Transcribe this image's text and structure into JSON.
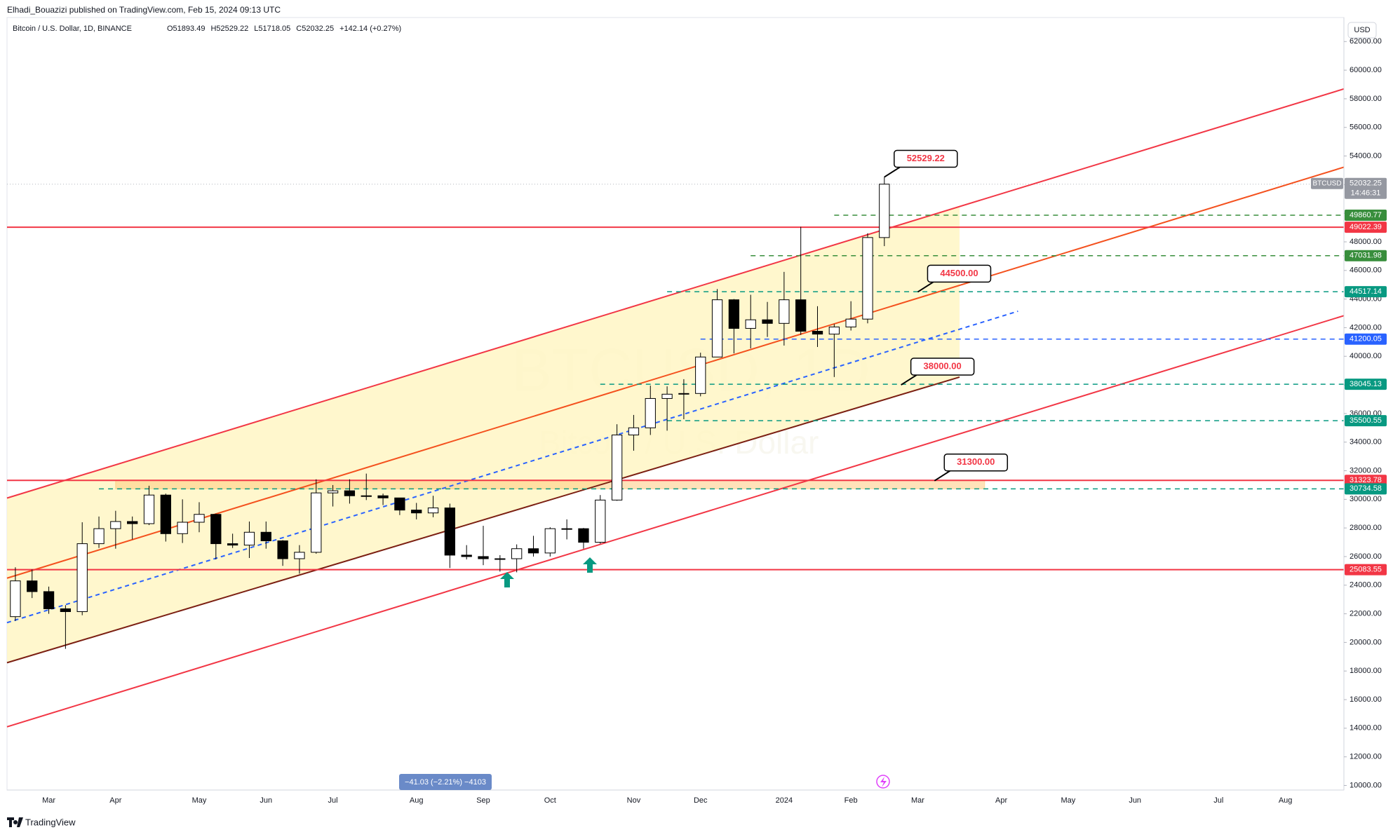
{
  "header": {
    "published": "Elhadi_Bouazizi published on TradingView.com, Feb 15, 2024 09:13 UTC",
    "brand": "TradingView"
  },
  "chart_data": {
    "type": "candlestick",
    "title": "Bitcoin / U.S. Dollar, 1D, BINANCE",
    "ohlc_text": [
      "O51893.49",
      "H52529.22",
      "L51718.05",
      "C52032.25",
      "+142.14 (+0.27%)"
    ],
    "watermark": [
      "BTCUSD, 1D",
      "Bitcoin / U.S. Dollar"
    ],
    "currency": "USD",
    "measure": "−41.03 (−2.21%) −4103",
    "categories": [
      null,
      null,
      "Mar",
      null,
      null,
      null,
      "Apr",
      null,
      null,
      null,
      null,
      "May",
      null,
      null,
      null,
      "Jun",
      null,
      null,
      null,
      "Jul",
      null,
      null,
      null,
      null,
      "Aug",
      null,
      null,
      null,
      "Sep",
      null,
      null,
      null,
      "Oct",
      null,
      null,
      null,
      null,
      "Nov",
      null,
      null,
      null,
      "Dec",
      null,
      null,
      null,
      null,
      "2024",
      null,
      null,
      null,
      "Feb",
      null,
      null,
      null,
      "Mar",
      null,
      null,
      null,
      null,
      "Apr",
      null,
      null,
      null,
      "May",
      null,
      null,
      null,
      "Jun",
      null,
      null,
      null,
      null,
      "Jul",
      null,
      null,
      null,
      "Aug",
      null,
      null,
      null
    ],
    "series": [
      {
        "name": "BTCUSD",
        "up_color": "#ffffff",
        "down_color": "#000000",
        "wick_color": "#000000",
        "open": [
          21800,
          24300,
          23550,
          22350,
          22150,
          26900,
          27950,
          28450,
          28300,
          30300,
          27600,
          28400,
          28950,
          26900,
          26800,
          27700,
          27100,
          25850,
          26300,
          30450,
          30600,
          30250,
          30250,
          30100,
          29250,
          29050,
          29400,
          26100,
          26000,
          25850,
          25850,
          26550,
          26250,
          27950,
          27950,
          27000,
          29950,
          34500,
          35000,
          37050,
          37350,
          37400,
          39950,
          43950,
          41950,
          42550,
          42300,
          43950,
          41750,
          41550,
          42050,
          42600,
          48300,
          null,
          null,
          null,
          null,
          null,
          null,
          null,
          null,
          null,
          null,
          null,
          null,
          null,
          null,
          null,
          null,
          null,
          null,
          null,
          null,
          null,
          null,
          null,
          null,
          null,
          null,
          null
        ],
        "high": [
          25250,
          25100,
          23900,
          22600,
          28400,
          28800,
          29200,
          28800,
          30950,
          30400,
          30000,
          29800,
          29000,
          27600,
          28450,
          28450,
          27150,
          26800,
          31400,
          31000,
          31400,
          31800,
          30400,
          30100,
          29750,
          30250,
          29700,
          26800,
          28150,
          26100,
          26850,
          27450,
          28050,
          28600,
          28000,
          30300,
          35250,
          35900,
          37950,
          37900,
          38400,
          40250,
          44700,
          44000,
          44300,
          43800,
          45900,
          49050,
          43500,
          42250,
          43850,
          48600,
          52529.22,
          null,
          null,
          null,
          null,
          null,
          null,
          null,
          null,
          null,
          null,
          null,
          null,
          null,
          null,
          null,
          null,
          null,
          null,
          null,
          null,
          null,
          null,
          null,
          null,
          null,
          null,
          null
        ],
        "low": [
          21500,
          23100,
          22000,
          19550,
          21900,
          26600,
          26550,
          27200,
          28200,
          27050,
          26950,
          27700,
          25800,
          26600,
          25900,
          26550,
          25350,
          24800,
          26200,
          29500,
          29700,
          29950,
          29600,
          28900,
          28600,
          28750,
          25200,
          25800,
          25400,
          24950,
          24900,
          26000,
          26000,
          27200,
          26550,
          26900,
          29900,
          33400,
          34500,
          34800,
          35600,
          37200,
          39950,
          40200,
          40550,
          41350,
          40750,
          41500,
          40650,
          38550,
          41800,
          42300,
          47700,
          null,
          null,
          null,
          null,
          null,
          null,
          null,
          null,
          null,
          null,
          null,
          null,
          null,
          null,
          null,
          null,
          null,
          null,
          null,
          null,
          null,
          null,
          null,
          null,
          null,
          null,
          null
        ],
        "close": [
          24300,
          23550,
          22350,
          22150,
          26900,
          27950,
          28450,
          28300,
          30300,
          27600,
          28400,
          28950,
          26900,
          26800,
          27700,
          27100,
          25850,
          26300,
          30450,
          30600,
          30250,
          30250,
          30100,
          29250,
          29050,
          29400,
          26100,
          26000,
          25850,
          25850,
          26550,
          26250,
          27950,
          27950,
          27000,
          29950,
          34500,
          35000,
          37050,
          37350,
          37400,
          39950,
          43950,
          41950,
          42550,
          42300,
          43950,
          41750,
          41550,
          42050,
          42600,
          48300,
          52032.25,
          null,
          null,
          null,
          null,
          null,
          null,
          null,
          null,
          null,
          null,
          null,
          null,
          null,
          null,
          null,
          null,
          null,
          null,
          null,
          null,
          null,
          null,
          null,
          null,
          null,
          null,
          null
        ]
      }
    ],
    "last": {
      "value": 52032.25,
      "countdown": "14:46:31",
      "color": "#9598a1"
    },
    "ylim": [
      9680,
      63680
    ],
    "yticks": [
      {
        "value": 10000,
        "label": "10000.00"
      },
      {
        "value": 12000,
        "label": "12000.00"
      },
      {
        "value": 14000,
        "label": "14000.00"
      },
      {
        "value": 16000,
        "label": "16000.00"
      },
      {
        "value": 18000,
        "label": "18000.00"
      },
      {
        "value": 20000,
        "label": "20000.00"
      },
      {
        "value": 22000,
        "label": "22000.00"
      },
      {
        "value": 24000,
        "label": "24000.00"
      },
      {
        "value": 26000,
        "label": "26000.00"
      },
      {
        "value": 28000,
        "label": "28000.00"
      },
      {
        "value": 30000,
        "label": "30000.00"
      },
      {
        "value": 32000,
        "label": "32000.00"
      },
      {
        "value": 34000,
        "label": "34000.00"
      },
      {
        "value": 36000,
        "label": "36000.00"
      },
      {
        "value": 38000,
        "label": "38000.00"
      },
      {
        "value": 40000,
        "label": "40000.00"
      },
      {
        "value": 42000,
        "label": "42000.00"
      },
      {
        "value": 44000,
        "label": "44000.00"
      },
      {
        "value": 46000,
        "label": "46000.00"
      },
      {
        "value": 48000,
        "label": "48000.00"
      },
      {
        "value": 50000,
        "label": "50000.00"
      },
      {
        "value": 52000,
        "label": "52000.00"
      },
      {
        "value": 54000,
        "label": "54000.00"
      },
      {
        "value": 56000,
        "label": "56000.00"
      },
      {
        "value": 58000,
        "label": "58000.00"
      },
      {
        "value": 60000,
        "label": "60000.00"
      },
      {
        "value": 62000,
        "label": "62000.00"
      }
    ],
    "channel_color": "#fff6c4",
    "trendlines": [
      {
        "x": [
          -0.5,
          79.5
        ],
        "y": [
          30090,
          58690
        ],
        "color": "#f23645"
      },
      {
        "x": [
          -0.5,
          79.5
        ],
        "y": [
          24490,
          53220
        ],
        "color": "#f4511e"
      },
      {
        "x": [
          -0.5,
          56.5
        ],
        "y": [
          18580,
          38545
        ],
        "color": "#7b1f12"
      },
      {
        "x": [
          -0.5,
          79.5
        ],
        "y": [
          14100,
          42840
        ],
        "color": "#f23645"
      },
      {
        "x": [
          -0.5,
          60
        ],
        "y": [
          21380,
          43150
        ],
        "color": "#2962ff",
        "style": "dashed"
      }
    ],
    "zone": {
      "x": [
        6,
        58
      ],
      "y": [
        30734.58,
        31323.78
      ],
      "color": "#ffcc80"
    },
    "levels": [
      {
        "value": 49860.77,
        "color": "#388e3c",
        "style": "dashed",
        "from": 49
      },
      {
        "value": 49022.39,
        "color": "#f23645",
        "style": "solid"
      },
      {
        "value": 47031.98,
        "color": "#388e3c",
        "style": "dashed",
        "from": 44
      },
      {
        "value": 44517.14,
        "color": "#089981",
        "style": "dashed",
        "from": 39
      },
      {
        "value": 41200.05,
        "color": "#2962ff",
        "style": "dashed",
        "from": 41
      },
      {
        "value": 38045.13,
        "color": "#089981",
        "style": "dashed",
        "from": 35
      },
      {
        "value": 35500.55,
        "color": "#089981",
        "style": "dashed",
        "from": 39
      },
      {
        "value": 31323.78,
        "color": "#f23645",
        "style": "solid"
      },
      {
        "value": 30734.58,
        "color": "#089981",
        "style": "dashed",
        "from": 5
      },
      {
        "value": 25083.55,
        "color": "#f23645",
        "style": "solid"
      }
    ],
    "callouts": [
      {
        "value": 52529.22,
        "x": 52
      },
      {
        "value": 44500,
        "label": "44500.00",
        "x": 54
      },
      {
        "value": 38000,
        "label": "38000.00",
        "x": 53
      },
      {
        "value": 31300,
        "label": "31300.00",
        "x": 55
      }
    ]
  }
}
